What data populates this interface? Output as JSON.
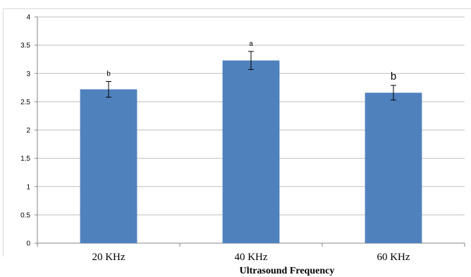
{
  "chart_data": {
    "type": "bar",
    "title": "",
    "xlabel": "Ultrasound Frequency",
    "ylabel": "",
    "ylim": [
      0,
      4
    ],
    "yticks": [
      "0",
      "0.5",
      "1",
      "1.5",
      "2",
      "2.5",
      "3",
      "3.5",
      "4"
    ],
    "categories": [
      "20 KHz",
      "40 KHz",
      "60 KHz"
    ],
    "values": [
      2.72,
      3.23,
      2.66
    ],
    "error": [
      0.14,
      0.16,
      0.13
    ],
    "significance_letters": [
      "b",
      "a",
      "b"
    ],
    "grid": true,
    "legend": "none",
    "bar_color": "#4f81bd",
    "grid_color": "#bfbfbf"
  }
}
